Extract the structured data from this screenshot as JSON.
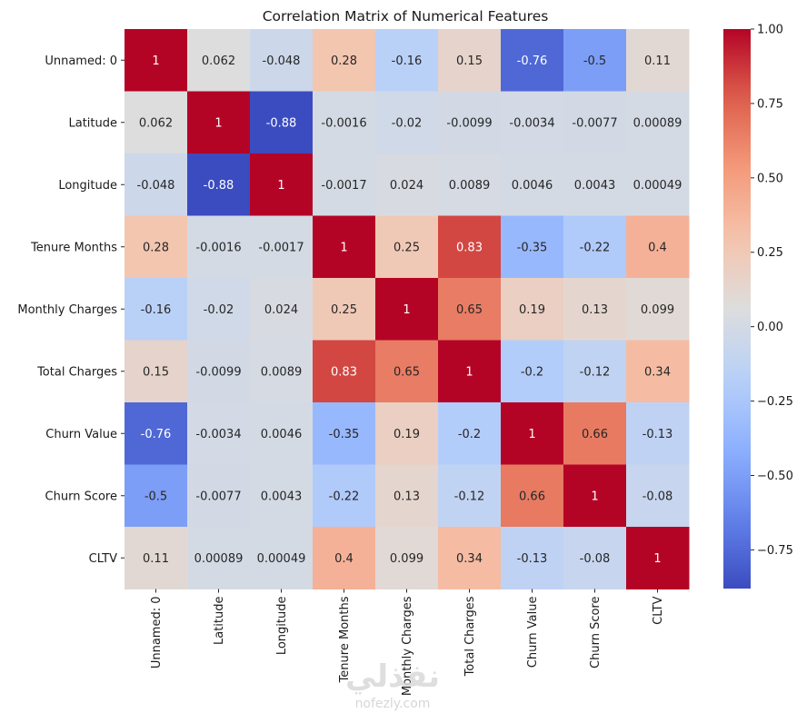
{
  "chart_data": {
    "type": "heatmap",
    "title": "Correlation Matrix of Numerical Features",
    "xlabel": "",
    "ylabel": "",
    "colormap": "coolwarm",
    "annotated": true,
    "rows": [
      "Unnamed: 0",
      "Latitude",
      "Longitude",
      "Tenure Months",
      "Monthly Charges",
      "Total Charges",
      "Churn Value",
      "Churn Score",
      "CLTV"
    ],
    "columns": [
      "Unnamed: 0",
      "Latitude",
      "Longitude",
      "Tenure Months",
      "Monthly Charges",
      "Total Charges",
      "Churn Value",
      "Churn Score",
      "CLTV"
    ],
    "values": [
      [
        1,
        0.062,
        -0.048,
        0.28,
        -0.16,
        0.15,
        -0.76,
        -0.5,
        0.11
      ],
      [
        0.062,
        1,
        -0.88,
        -0.0016,
        -0.02,
        -0.0099,
        -0.0034,
        -0.0077,
        0.00089
      ],
      [
        -0.048,
        -0.88,
        1,
        -0.0017,
        0.024,
        0.0089,
        0.0046,
        0.0043,
        0.00049
      ],
      [
        0.28,
        -0.0016,
        -0.0017,
        1,
        0.25,
        0.83,
        -0.35,
        -0.22,
        0.4
      ],
      [
        -0.16,
        -0.02,
        0.024,
        0.25,
        1,
        0.65,
        0.19,
        0.13,
        0.099
      ],
      [
        0.15,
        -0.0099,
        0.0089,
        0.83,
        0.65,
        1,
        -0.2,
        -0.12,
        0.34
      ],
      [
        -0.76,
        -0.0034,
        0.0046,
        -0.35,
        0.19,
        -0.2,
        1,
        0.66,
        -0.13
      ],
      [
        -0.5,
        -0.0077,
        0.0043,
        -0.22,
        0.13,
        -0.12,
        0.66,
        1,
        -0.08
      ],
      [
        0.11,
        0.00089,
        0.00049,
        0.4,
        0.099,
        0.34,
        -0.13,
        -0.08,
        1
      ]
    ],
    "colorbar": {
      "range": [
        -0.88,
        1.0
      ],
      "ticks": [
        1.0,
        0.75,
        0.5,
        0.25,
        0.0,
        -0.25,
        -0.5,
        -0.75
      ],
      "tick_labels": [
        "1.00",
        "0.75",
        "0.50",
        "0.25",
        "0.00",
        "−0.25",
        "−0.50",
        "−0.75"
      ],
      "placement": "right"
    }
  },
  "watermark": {
    "arabic_text": "نفذلي",
    "url_text": "nofezly.com"
  }
}
